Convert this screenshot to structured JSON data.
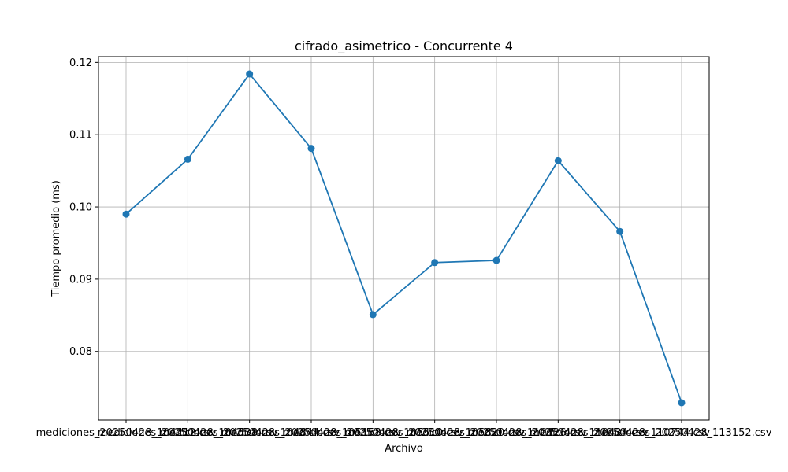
{
  "chart_data": {
    "type": "line",
    "title": "cifrado_asimetrico - Concurrente 4",
    "xlabel": "Archivo",
    "ylabel": "Tiempo promedio (ms)",
    "categories": [
      "mediciones_20250428_104212.csv",
      "mediciones_20250428_104538.csv",
      "mediciones_20250428_104844.csv",
      "mediciones_20250428_105158.csv",
      "mediciones_20250428_105510.csv",
      "mediciones_20250428_105820.csv",
      "mediciones_20250428_110126.csv",
      "mediciones_20250428_110434.csv",
      "mediciones_20250428_110744.csv",
      "mediciones_20250428_113152.csv"
    ],
    "series": [
      {
        "values": [
          0.099,
          0.1066,
          0.1184,
          0.1081,
          0.0851,
          0.0923,
          0.0926,
          0.1064,
          0.0966,
          0.0729
        ]
      }
    ],
    "yticks": [
      "0.08",
      "0.09",
      "0.10",
      "0.11",
      "0.12"
    ],
    "ylim": [
      0.0705,
      0.1208
    ],
    "grid": true,
    "color": "#1f77b4"
  }
}
